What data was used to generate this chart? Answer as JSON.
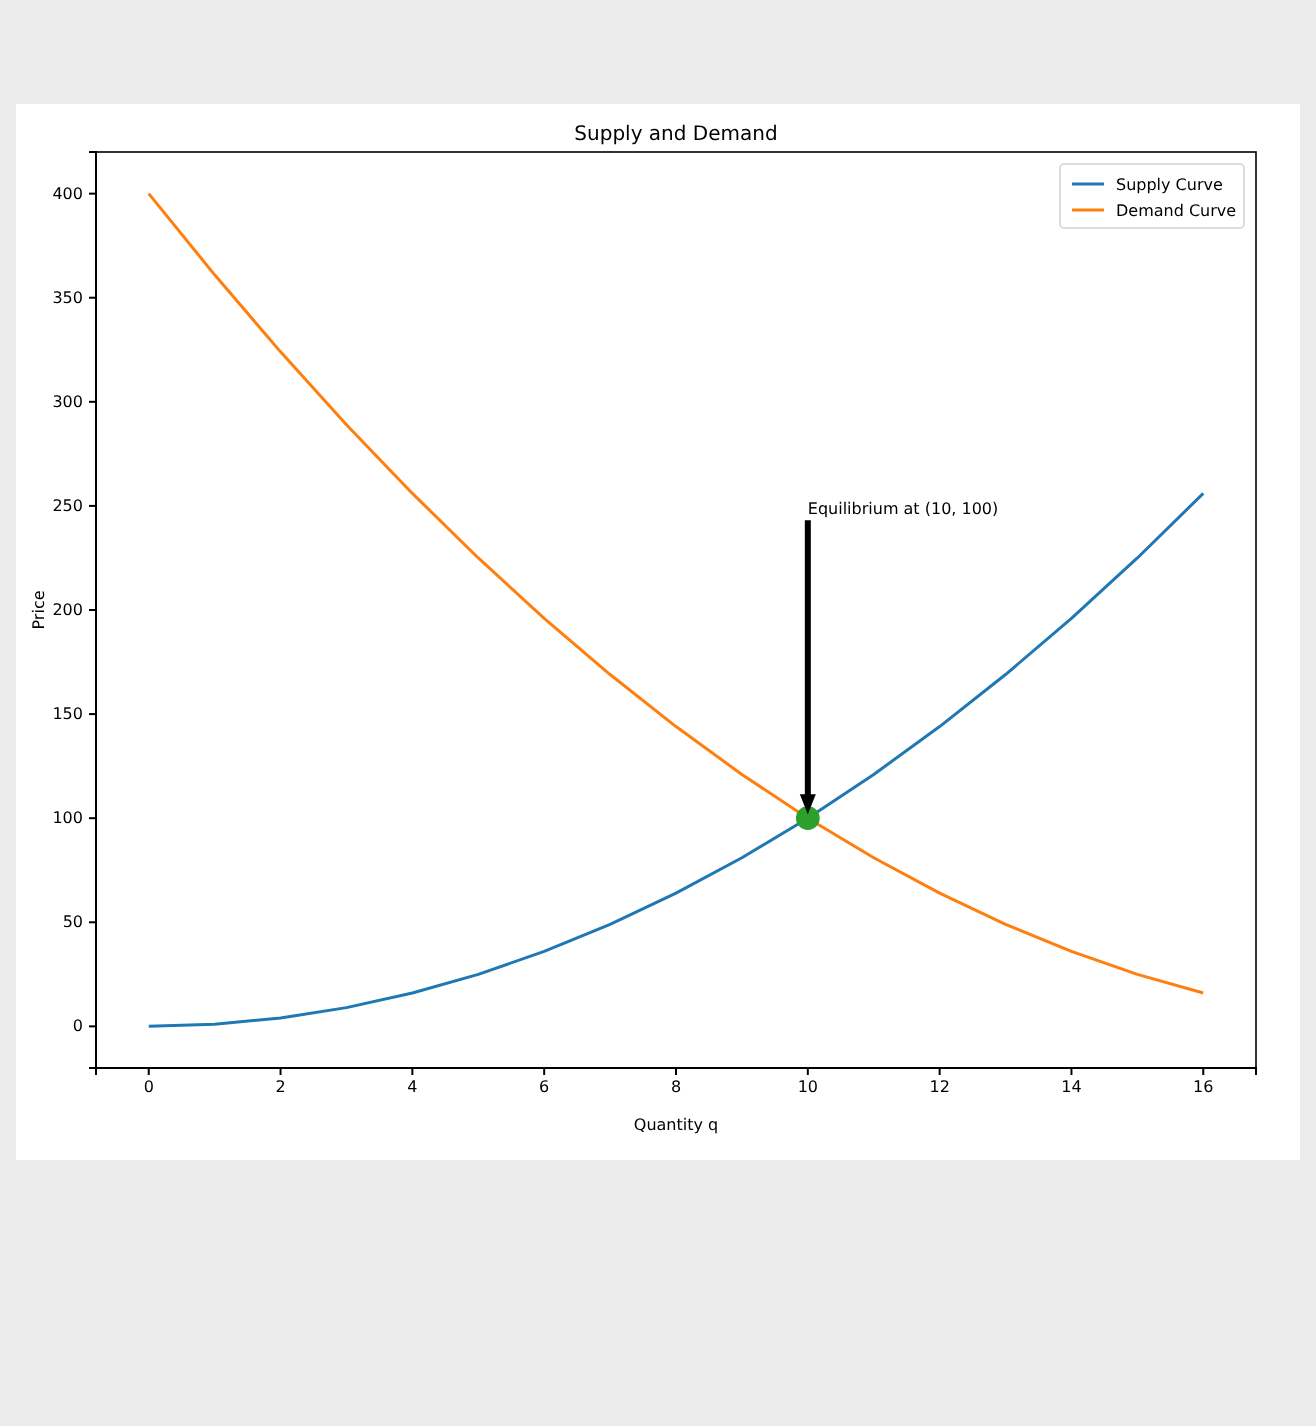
{
  "chart_data": {
    "type": "line",
    "title": "Supply and Demand",
    "xlabel": "Quantity q",
    "ylabel": "Price",
    "xlim": [
      -0.8,
      16.8
    ],
    "xticks": [
      0,
      2,
      4,
      6,
      8,
      10,
      12,
      14,
      16
    ],
    "ylim": [
      -20,
      420
    ],
    "yticks": [
      0,
      50,
      100,
      150,
      200,
      250,
      300,
      350,
      400
    ],
    "legend": "top right",
    "grid": false,
    "annotations": [
      "Equilibrium at (10, 100)"
    ],
    "series": [
      {
        "name": "Supply Curve",
        "color": "#1f77b4",
        "x": [
          0,
          1,
          2,
          3,
          4,
          5,
          6,
          7,
          8,
          9,
          10,
          11,
          12,
          13,
          14,
          15,
          16
        ],
        "values": [
          0,
          1,
          4,
          9,
          16,
          25,
          36,
          49,
          64,
          81,
          100,
          121,
          144,
          169,
          196,
          225,
          256
        ]
      },
      {
        "name": "Demand Curve",
        "color": "#ff7f0e",
        "x": [
          0,
          1,
          2,
          3,
          4,
          5,
          6,
          7,
          8,
          9,
          10,
          11,
          12,
          13,
          14,
          15,
          16
        ],
        "values": [
          400,
          361,
          324,
          289,
          256,
          225,
          196,
          169,
          144,
          121,
          100,
          81,
          64,
          49,
          36,
          25,
          16
        ]
      },
      {
        "type": "scatter",
        "color": "#2ca02c",
        "marker": "circle",
        "x": [
          10
        ],
        "values": [
          100
        ]
      }
    ]
  }
}
